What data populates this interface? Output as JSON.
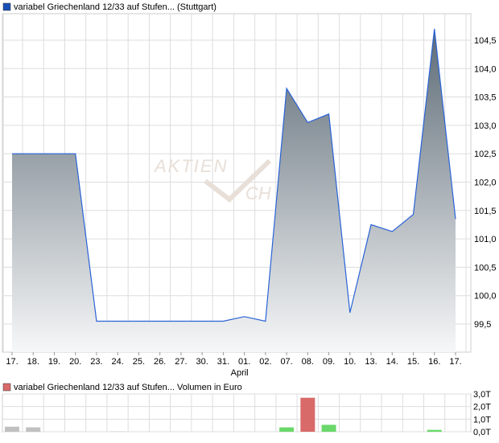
{
  "chart_data": [
    {
      "type": "area",
      "title": "variabel Griechenland 12/33 auf Stufen... (Stuttgart)",
      "legend_color": "#1a4fb5",
      "categories": [
        "17.",
        "18.",
        "19.",
        "20.",
        "23.",
        "24.",
        "25.",
        "26.",
        "27.",
        "30.",
        "31.",
        "01.",
        "02.",
        "07.",
        "08.",
        "09.",
        "10.",
        "13.",
        "14.",
        "15.",
        "16.",
        "17."
      ],
      "month_label": "April",
      "values": [
        102.5,
        102.5,
        102.5,
        102.5,
        99.55,
        99.55,
        99.55,
        99.55,
        99.55,
        99.55,
        99.55,
        99.63,
        99.55,
        103.65,
        103.05,
        103.2,
        99.7,
        101.25,
        101.13,
        101.43,
        104.7,
        101.35
      ],
      "yticks": [
        "99,5",
        "100,0",
        "100,5",
        "101,0",
        "101,5",
        "102,0",
        "102,5",
        "103,0",
        "103,5",
        "104,0",
        "104,5"
      ],
      "ylim": [
        99.0,
        104.95
      ],
      "grid": true,
      "line_color": "#2a63d6",
      "watermark": "AKTIEN CHECK"
    },
    {
      "type": "bar",
      "title": "variabel Griechenland 12/33 auf Stufen... Volumen in Euro",
      "legend_color": "#d96a6a",
      "values": [
        0.4,
        0.35,
        0,
        0,
        0,
        0.02,
        0,
        0,
        0,
        0,
        0,
        0,
        0,
        0.35,
        2.7,
        0.55,
        0,
        0,
        0,
        0,
        0.15,
        0
      ],
      "colors": [
        "#c0c0c0",
        "#c0c0c0",
        "",
        "",
        "",
        "#c0c0c0",
        "",
        "",
        "",
        "",
        "",
        "",
        "",
        "#6ad86a",
        "#d96a6a",
        "#6ad86a",
        "",
        "",
        "",
        "",
        "#6ad86a",
        ""
      ],
      "yticks": [
        "0,0T",
        "1,0T",
        "2,0T",
        "3,0T"
      ],
      "ylim": [
        0,
        3
      ],
      "grid": true
    }
  ]
}
